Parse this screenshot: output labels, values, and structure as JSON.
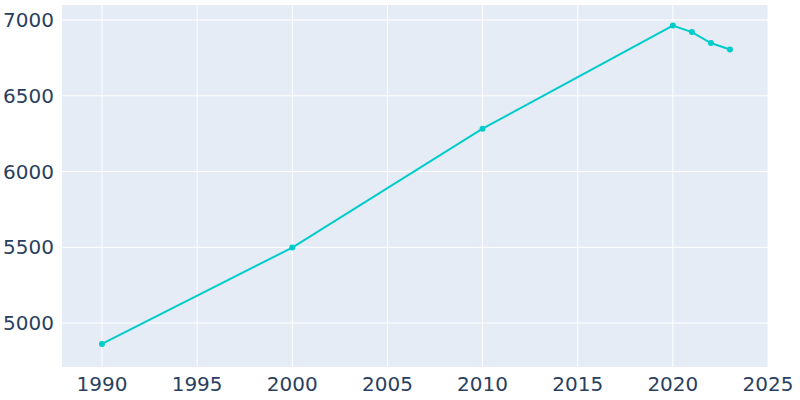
{
  "chart_data": {
    "type": "line",
    "x": [
      1990,
      2000,
      2010,
      2020,
      2021,
      2022,
      2023
    ],
    "values": [
      4862,
      5498,
      6283,
      6963,
      6920,
      6848,
      6805
    ],
    "color": "#00cccc",
    "marker": "circle",
    "xlim": [
      1987.9,
      2025
    ],
    "xticks": [
      1990,
      1995,
      2000,
      2005,
      2010,
      2015,
      2020,
      2025
    ],
    "ylim": [
      4710,
      7099
    ],
    "yticks": [
      5000,
      5500,
      6000,
      6500,
      7000
    ],
    "grid": true
  }
}
